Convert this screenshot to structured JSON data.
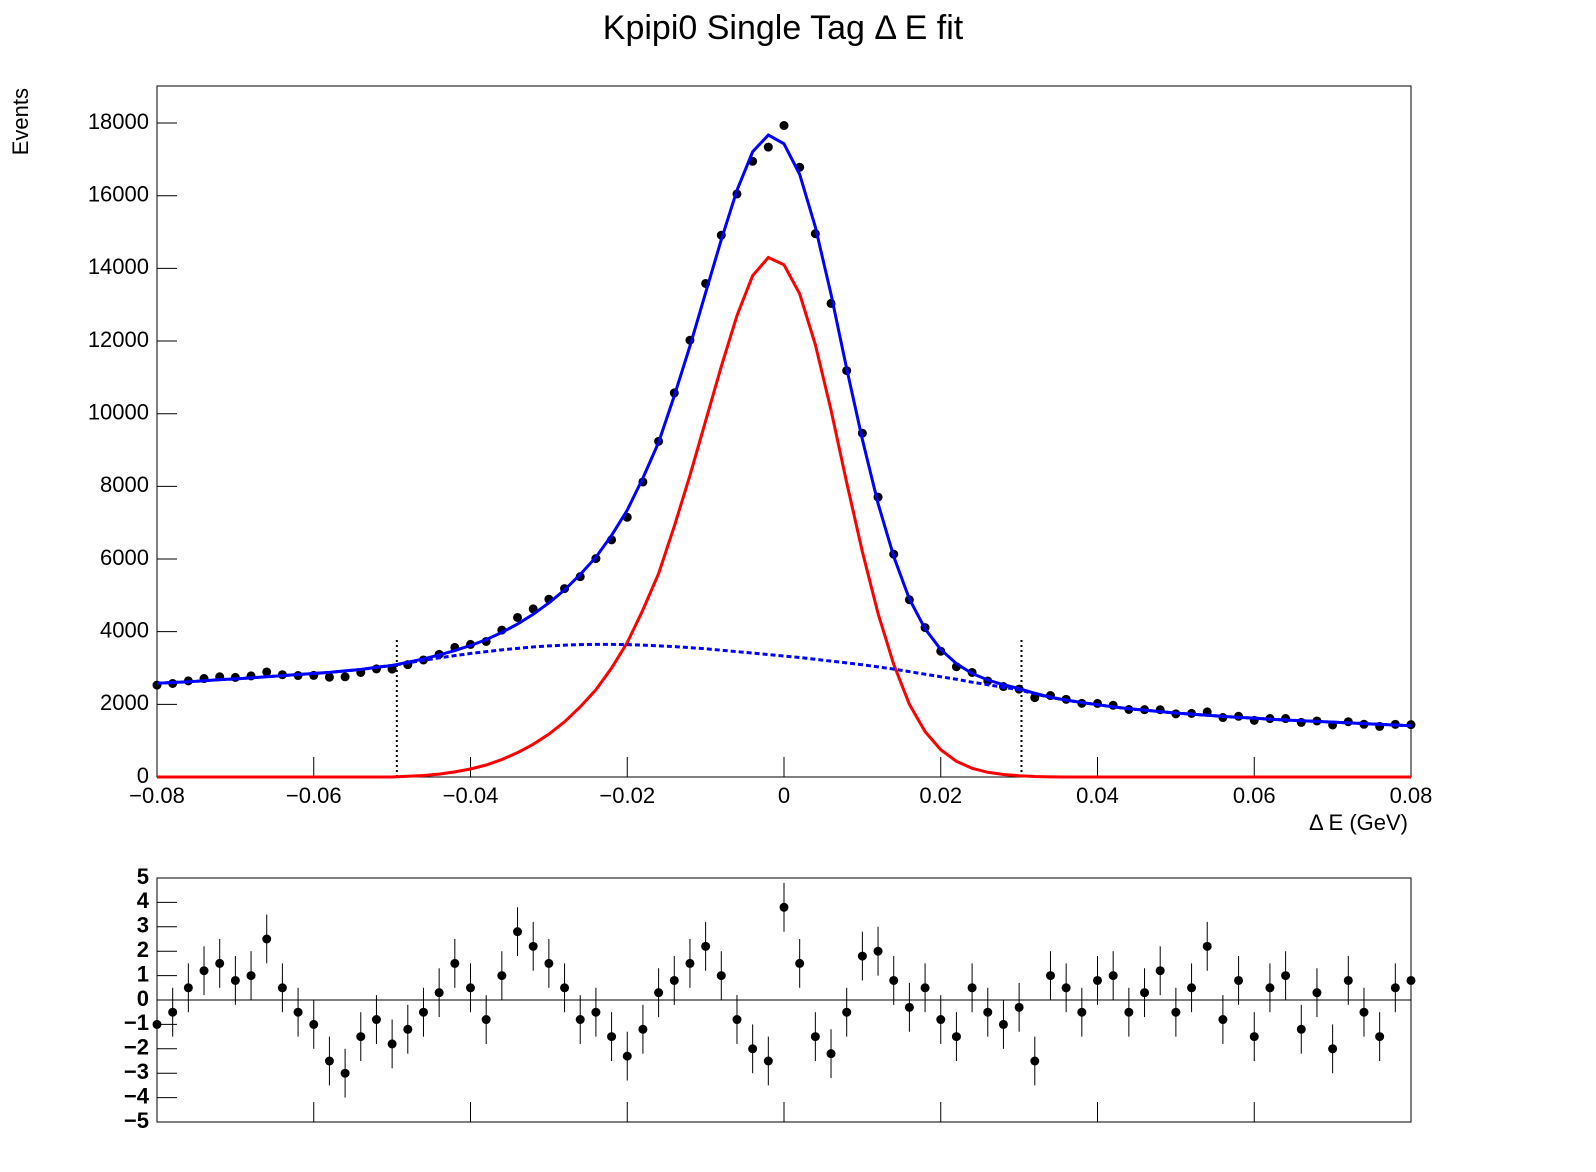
{
  "chart_data": [
    {
      "type": "line",
      "title": "Kpipi0 Single Tag  Δ E fit",
      "xlabel": "Δ E (GeV)",
      "ylabel": "Events",
      "xlim": [
        -0.08,
        0.08
      ],
      "xticks": [
        {
          "value": -0.08,
          "label": "−0.08"
        },
        {
          "value": -0.06,
          "label": "−0.06"
        },
        {
          "value": -0.04,
          "label": "−0.04"
        },
        {
          "value": -0.02,
          "label": "−0.02"
        },
        0,
        0.02,
        0.04,
        0.06,
        0.08
      ],
      "ylim": [
        0,
        19020
      ],
      "yticks": [
        0,
        2000,
        4000,
        6000,
        8000,
        10000,
        12000,
        14000,
        16000,
        18000
      ],
      "signal_window": [
        -0.0494,
        0.0303
      ],
      "window_height": 3800,
      "x": [
        -0.08,
        -0.078,
        -0.076,
        -0.074,
        -0.072,
        -0.07,
        -0.068,
        -0.066,
        -0.064,
        -0.062,
        -0.06,
        -0.058,
        -0.056,
        -0.054,
        -0.052,
        -0.05,
        -0.048,
        -0.046,
        -0.044,
        -0.042,
        -0.04,
        -0.038,
        -0.036,
        -0.034,
        -0.032,
        -0.03,
        -0.028,
        -0.026,
        -0.024,
        -0.022,
        -0.02,
        -0.018,
        -0.016,
        -0.014,
        -0.012,
        -0.01,
        -0.008,
        -0.006,
        -0.004,
        -0.002,
        0,
        0.002,
        0.004,
        0.006,
        0.008,
        0.01,
        0.012,
        0.014,
        0.016,
        0.018,
        0.02,
        0.022,
        0.024,
        0.026,
        0.028,
        0.03,
        0.032,
        0.034,
        0.036,
        0.038,
        0.04,
        0.042,
        0.044,
        0.046,
        0.048,
        0.05,
        0.052,
        0.054,
        0.056,
        0.058,
        0.06,
        0.062,
        0.064,
        0.066,
        0.068,
        0.07,
        0.072,
        0.074,
        0.076,
        0.078,
        0.08
      ],
      "series": [
        {
          "style": "points",
          "color": "#000000",
          "values": [
            2530,
            2574,
            2646,
            2711,
            2758,
            2742,
            2782,
            2891,
            2816,
            2793,
            2797,
            2746,
            2758,
            2878,
            2976,
            2970,
            3093,
            3221,
            3377,
            3568,
            3650,
            3731,
            4043,
            4392,
            4627,
            4894,
            5186,
            5515,
            6011,
            6528,
            7148,
            8121,
            9239,
            10572,
            12023,
            13584,
            14912,
            16048,
            16948,
            17338,
            17932,
            16783,
            14955,
            13036,
            11187,
            9463,
            7704,
            6132,
            4879,
            4112,
            3463,
            3036,
            2877,
            2644,
            2490,
            2420,
            2185,
            2242,
            2138,
            2027,
            2026,
            1974,
            1858,
            1853,
            1851,
            1739,
            1751,
            1791,
            1637,
            1672,
            1560,
            1610,
            1610,
            1503,
            1542,
            1432,
            1521,
            1451,
            1393,
            1449,
            1440
          ]
        },
        {
          "style": "line",
          "color": "#ff0000",
          "values": [
            0,
            0,
            0,
            0,
            0,
            0,
            0,
            0,
            0,
            0,
            0,
            0,
            0,
            0,
            0,
            0,
            20,
            40,
            80,
            140,
            220,
            330,
            480,
            670,
            900,
            1180,
            1520,
            1930,
            2400,
            3000,
            3700,
            4600,
            5600,
            6900,
            8300,
            9800,
            11300,
            12700,
            13800,
            14300,
            14100,
            13300,
            11900,
            10100,
            8100,
            6200,
            4500,
            3100,
            2000,
            1250,
            750,
            430,
            240,
            130,
            70,
            35,
            15,
            5,
            0,
            0,
            0,
            0,
            0,
            0,
            0,
            0,
            0,
            0,
            0,
            0,
            0,
            0,
            0,
            0,
            0,
            0,
            0,
            0,
            0,
            0,
            0
          ]
        },
        {
          "style": "dashed",
          "color": "#0000ff",
          "values": [
            2580,
            2600,
            2620,
            2650,
            2680,
            2700,
            2730,
            2760,
            2790,
            2820,
            2850,
            2880,
            2920,
            2960,
            3020,
            3070,
            3140,
            3210,
            3280,
            3340,
            3400,
            3450,
            3500,
            3540,
            3580,
            3610,
            3630,
            3645,
            3650,
            3650,
            3645,
            3630,
            3610,
            3590,
            3560,
            3530,
            3490,
            3450,
            3410,
            3370,
            3330,
            3290,
            3240,
            3190,
            3140,
            3090,
            3030,
            2970,
            2900,
            2830,
            2760,
            2690,
            2610,
            2540,
            2470,
            2400,
            2290,
            2190,
            2115,
            2050,
            1990,
            1930,
            1880,
            1840,
            1800,
            1760,
            1730,
            1700,
            1670,
            1640,
            1620,
            1590,
            1570,
            1550,
            1530,
            1510,
            1490,
            1470,
            1450,
            1430,
            1410
          ]
        },
        {
          "style": "line",
          "color": "#0000ff",
          "values": [
            2580,
            2600,
            2620,
            2650,
            2680,
            2700,
            2730,
            2760,
            2790,
            2820,
            2850,
            2880,
            2920,
            2960,
            3020,
            3070,
            3160,
            3250,
            3360,
            3480,
            3620,
            3780,
            3980,
            4210,
            4480,
            4790,
            5150,
            5575,
            6050,
            6650,
            7345,
            8230,
            9210,
            10490,
            11860,
            13330,
            14790,
            16150,
            17210,
            17670,
            17430,
            16590,
            15140,
            13290,
            11240,
            9290,
            7530,
            6070,
            4900,
            4080,
            3510,
            3120,
            2850,
            2670,
            2540,
            2435,
            2305,
            2195,
            2115,
            2050,
            1990,
            1930,
            1880,
            1840,
            1800,
            1760,
            1730,
            1700,
            1670,
            1640,
            1620,
            1590,
            1570,
            1550,
            1530,
            1510,
            1490,
            1470,
            1450,
            1430,
            1410
          ]
        }
      ]
    },
    {
      "type": "scatter",
      "xlim": [
        -0.08,
        0.08
      ],
      "xticks": [
        -0.08,
        -0.06,
        -0.04,
        -0.02,
        0,
        0.02,
        0.04,
        0.06,
        0.08
      ],
      "ylim": [
        -5,
        5
      ],
      "yticks": [
        {
          "value": -5,
          "label": "−5"
        },
        {
          "value": -4,
          "label": "−4"
        },
        {
          "value": -3,
          "label": "−3"
        },
        {
          "value": -2,
          "label": "−2"
        },
        {
          "value": -1,
          "label": "−1"
        },
        0,
        1,
        2,
        3,
        4,
        5
      ],
      "reference_line": 0,
      "color": "#000000",
      "x": [
        -0.08,
        -0.078,
        -0.076,
        -0.074,
        -0.072,
        -0.07,
        -0.068,
        -0.066,
        -0.064,
        -0.062,
        -0.06,
        -0.058,
        -0.056,
        -0.054,
        -0.052,
        -0.05,
        -0.048,
        -0.046,
        -0.044,
        -0.042,
        -0.04,
        -0.038,
        -0.036,
        -0.034,
        -0.032,
        -0.03,
        -0.028,
        -0.026,
        -0.024,
        -0.022,
        -0.02,
        -0.018,
        -0.016,
        -0.014,
        -0.012,
        -0.01,
        -0.008,
        -0.006,
        -0.004,
        -0.002,
        0,
        0.002,
        0.004,
        0.006,
        0.008,
        0.01,
        0.012,
        0.014,
        0.016,
        0.018,
        0.02,
        0.022,
        0.024,
        0.026,
        0.028,
        0.03,
        0.032,
        0.034,
        0.036,
        0.038,
        0.04,
        0.042,
        0.044,
        0.046,
        0.048,
        0.05,
        0.052,
        0.054,
        0.056,
        0.058,
        0.06,
        0.062,
        0.064,
        0.066,
        0.068,
        0.07,
        0.072,
        0.074,
        0.076,
        0.078,
        0.08
      ],
      "values": [
        -1,
        -0.5,
        0.5,
        1.2,
        1.5,
        0.8,
        1.0,
        2.5,
        0.5,
        -0.5,
        -1.0,
        -2.5,
        -3.0,
        -1.5,
        -0.8,
        -1.8,
        -1.2,
        -0.5,
        0.3,
        1.5,
        0.5,
        -0.8,
        1.0,
        2.8,
        2.2,
        1.5,
        0.5,
        -0.8,
        -0.5,
        -1.5,
        -2.3,
        -1.2,
        0.3,
        0.8,
        1.5,
        2.2,
        1.0,
        -0.8,
        -2.0,
        -2.5,
        3.8,
        1.5,
        -1.5,
        -2.2,
        -0.5,
        1.8,
        2.0,
        0.8,
        -0.3,
        0.5,
        -0.8,
        -1.5,
        0.5,
        -0.5,
        -1.0,
        -0.3,
        -2.5,
        1.0,
        0.5,
        -0.5,
        0.8,
        1.0,
        -0.5,
        0.3,
        1.2,
        -0.5,
        0.5,
        2.2,
        -0.8,
        0.8,
        -1.5,
        0.5,
        1.0,
        -1.2,
        0.3,
        -2.0,
        0.8,
        -0.5,
        -1.5,
        0.5,
        0.8
      ],
      "errors": [
        1,
        1,
        1,
        1,
        1,
        1,
        1,
        1,
        1,
        1,
        1,
        1,
        1,
        1,
        1,
        1,
        1,
        1,
        1,
        1,
        1,
        1,
        1,
        1,
        1,
        1,
        1,
        1,
        1,
        1,
        1,
        1,
        1,
        1,
        1,
        1,
        1,
        1,
        1,
        1,
        1,
        1,
        1,
        1,
        1,
        1,
        1,
        1,
        1,
        1,
        1,
        1,
        1,
        1,
        1,
        1,
        1,
        1,
        1,
        1,
        1,
        1,
        1,
        1,
        1,
        1,
        1,
        1,
        1,
        1,
        1,
        1,
        1,
        1,
        1,
        1,
        1,
        1,
        1,
        1,
        1
      ]
    }
  ]
}
